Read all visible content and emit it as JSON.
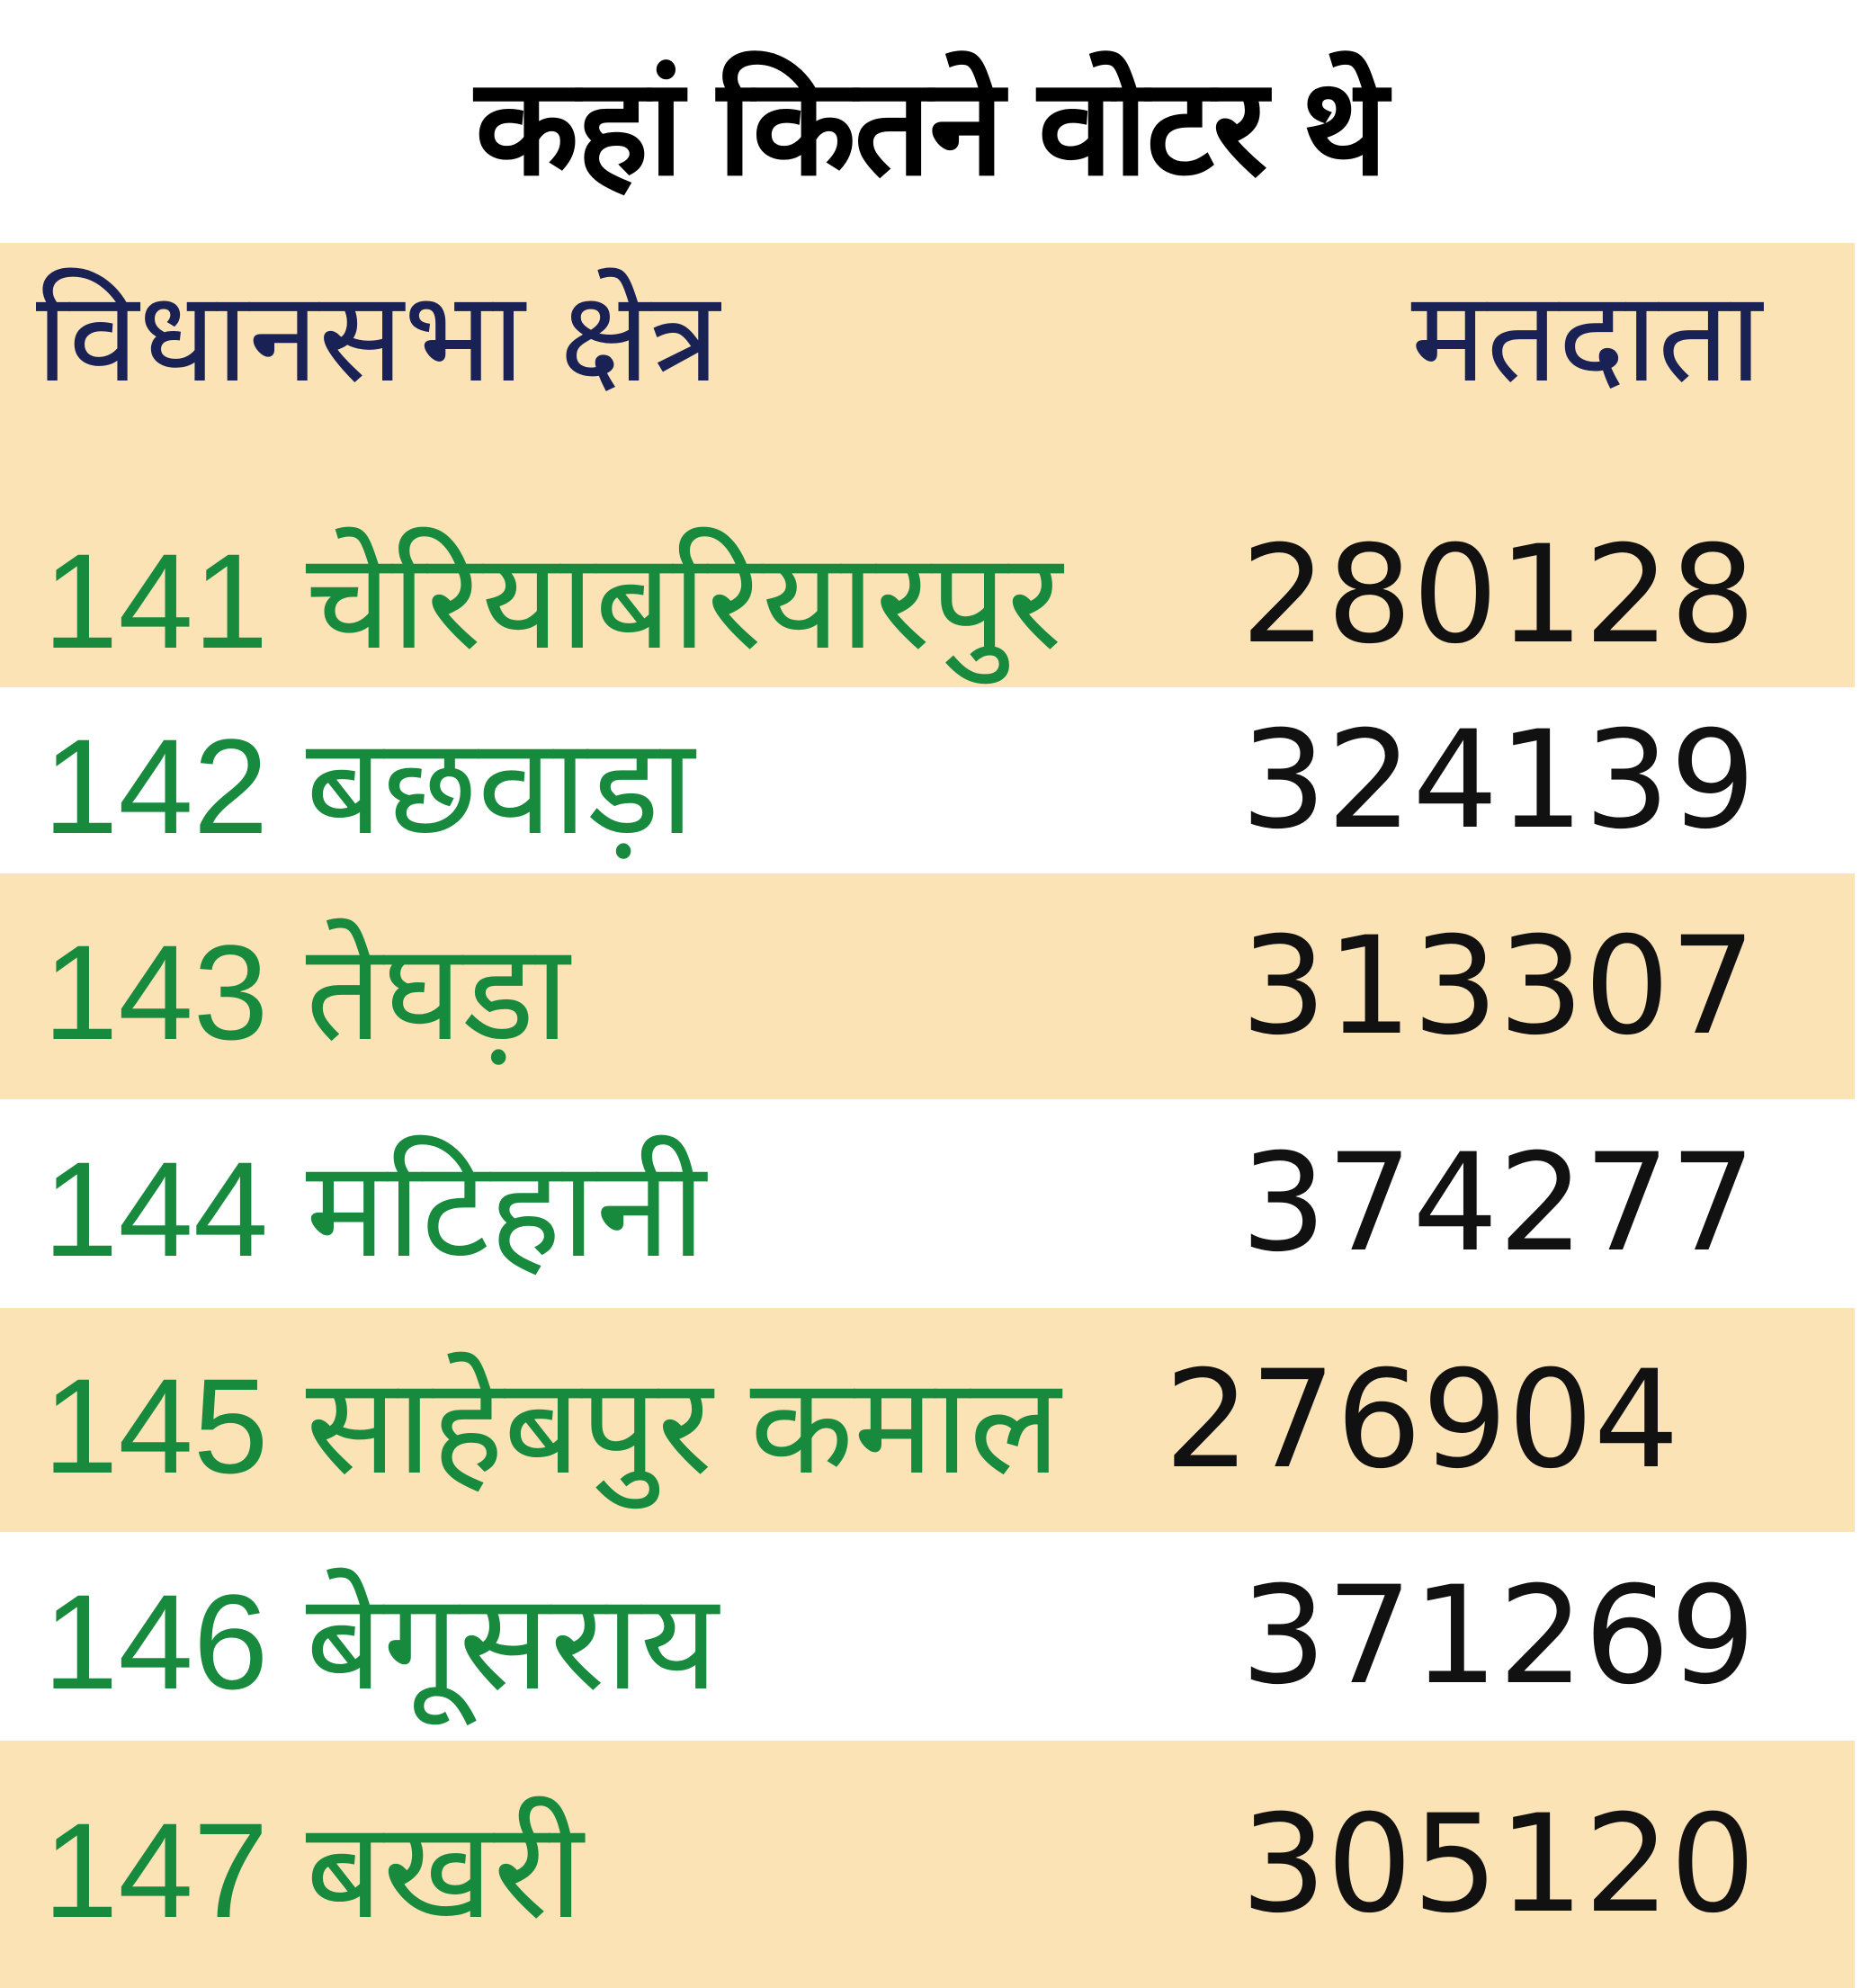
{
  "title": "कहां कितने वोटर थे",
  "colors": {
    "beige": "#fbe3b5",
    "header_text": "#1a2255",
    "name_text": "#178a3e",
    "value_text": "#111111"
  },
  "table": {
    "headers": {
      "constituency": "विधानसभा क्षेत्र",
      "voters": "मतदाता"
    },
    "rows": [
      {
        "name": "141 चेरियाबरियारपुर",
        "voters": "280128"
      },
      {
        "name": "142 बछवाड़ा",
        "voters": "324139"
      },
      {
        "name": "143 तेघड़ा",
        "voters": "313307"
      },
      {
        "name": "144 मटिहानी",
        "voters": "374277"
      },
      {
        "name": "145 साहेबपुर कमाल",
        "voters": "276904"
      },
      {
        "name": "146 बेगूसराय",
        "voters": "371269"
      },
      {
        "name": "147 बखरी",
        "voters": "305120"
      }
    ]
  }
}
